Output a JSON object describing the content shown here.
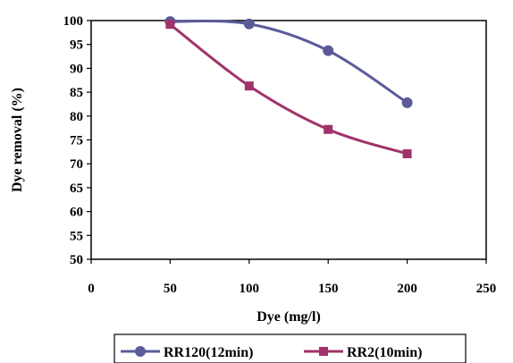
{
  "chart_data": {
    "type": "line",
    "title": "",
    "xlabel": "Dye (mg/l)",
    "ylabel": "Dye removal (%)",
    "xlim": [
      0,
      250
    ],
    "ylim": [
      50,
      100
    ],
    "xticks": [
      0,
      50,
      100,
      150,
      200,
      250
    ],
    "yticks": [
      50,
      55,
      60,
      65,
      70,
      75,
      80,
      85,
      90,
      95,
      100
    ],
    "grid": false,
    "legend_position": "bottom",
    "series": [
      {
        "name": "RR120(12min)",
        "marker": "circle",
        "color": "#5b5b9a",
        "x": [
          50,
          100,
          150,
          200
        ],
        "y": [
          99.8,
          99.3,
          93.7,
          82.8
        ]
      },
      {
        "name": "RR2(10min)",
        "marker": "square",
        "color": "#a0336a",
        "x": [
          50,
          100,
          150,
          200
        ],
        "y": [
          99.2,
          86.3,
          77.2,
          72.1
        ]
      }
    ]
  }
}
